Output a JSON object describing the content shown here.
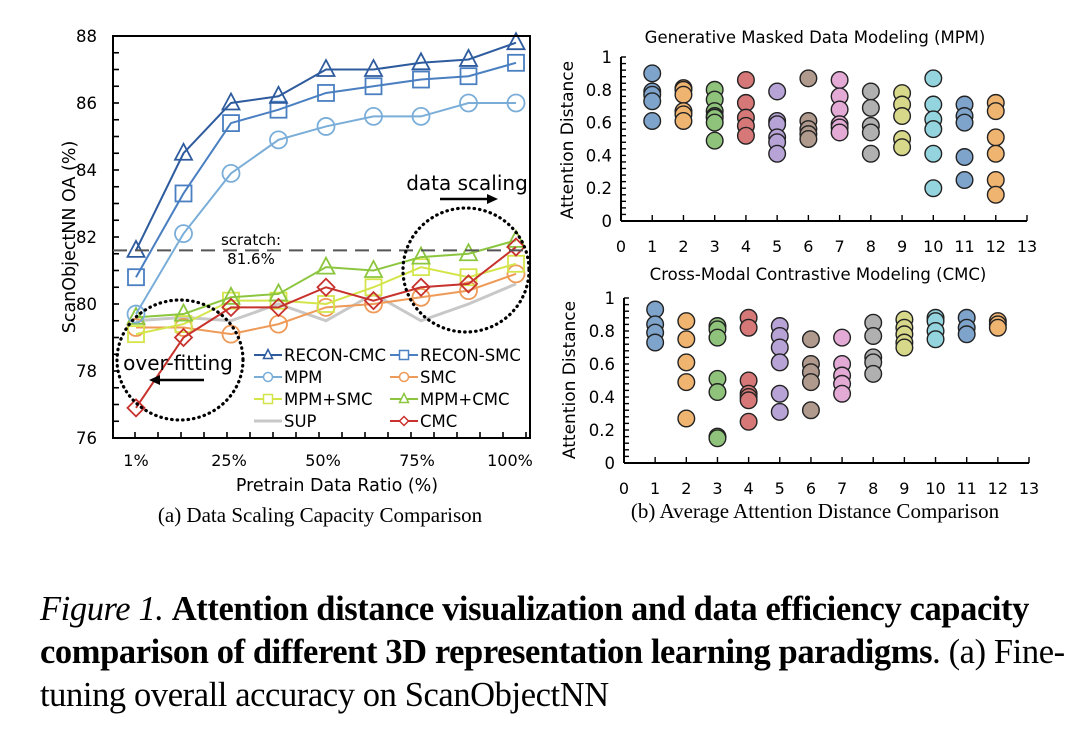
{
  "figure": {
    "subcaption_a": "(a) Data Scaling Capacity Comparison",
    "subcaption_b": "(b) Average Attention Distance Comparison"
  },
  "caption": {
    "label": "Figure 1.",
    "bold_text": "Attention distance visualization and data efficiency capacity comparison of different 3D representation learning paradigms",
    "rest_text": ". (a) Fine-tuning overall accuracy on ScanObjectNN"
  },
  "colors": {
    "RECON-CMC": "#2e5b9e",
    "RECON-SMC": "#4a7fc1",
    "MPM": "#7aaed9",
    "SMC": "#ee9a58",
    "MPM+SMC": "#d4e54a",
    "MPM+CMC": "#8cc63f",
    "SUP": "#c8c8c8",
    "CMC": "#c8322d",
    "scatter": [
      "#7ea4cc",
      "#f0b471",
      "#8fc27a",
      "#d67877",
      "#b7a3d6",
      "#b09a8e",
      "#e3aad6",
      "#b0b0b0",
      "#d8d88a",
      "#94d4de",
      "#7ea4cc",
      "#f0b471"
    ]
  },
  "chart_data": [
    {
      "type": "line",
      "id": "data-scaling",
      "title": "",
      "xlabel": "Pretrain Data Ratio (%)",
      "ylabel": "ScanObjectNN OA (%)",
      "x_tick_labels": [
        "1%",
        "25%",
        "50%",
        "75%",
        "100%"
      ],
      "x": [
        1,
        12.5,
        25,
        37.5,
        50,
        62.5,
        75,
        87.5,
        100
      ],
      "ylim": [
        76,
        88
      ],
      "y_ticks": [
        76,
        78,
        80,
        82,
        84,
        86,
        88
      ],
      "grid": false,
      "legend_placement": "bottom-right",
      "series": [
        {
          "name": "RECON-CMC",
          "marker": "triangle",
          "values": [
            81.6,
            84.5,
            86.0,
            86.2,
            87.0,
            87.0,
            87.2,
            87.3,
            87.8
          ]
        },
        {
          "name": "RECON-SMC",
          "marker": "square",
          "values": [
            80.8,
            83.3,
            85.4,
            85.8,
            86.3,
            86.5,
            86.7,
            86.8,
            87.2
          ]
        },
        {
          "name": "MPM",
          "marker": "circle",
          "values": [
            79.7,
            82.1,
            83.9,
            84.9,
            85.3,
            85.6,
            85.6,
            86.0,
            86.0
          ]
        },
        {
          "name": "SMC",
          "marker": "circle",
          "values": [
            79.3,
            79.3,
            79.1,
            79.4,
            79.9,
            80.0,
            80.2,
            80.4,
            80.9
          ]
        },
        {
          "name": "MPM+SMC",
          "marker": "square",
          "values": [
            79.1,
            79.4,
            80.1,
            80.1,
            80.0,
            80.5,
            81.1,
            80.8,
            81.2
          ]
        },
        {
          "name": "MPM+CMC",
          "marker": "triangle",
          "values": [
            79.6,
            79.7,
            80.2,
            80.3,
            81.1,
            81.0,
            81.4,
            81.5,
            81.9
          ]
        },
        {
          "name": "SUP",
          "marker": "none",
          "values": [
            79.5,
            79.6,
            79.5,
            80.0,
            79.5,
            80.3,
            79.5,
            80.0,
            80.6
          ]
        },
        {
          "name": "CMC",
          "marker": "diamond",
          "values": [
            76.9,
            79.0,
            79.9,
            79.9,
            80.5,
            80.1,
            80.5,
            80.6,
            81.7
          ]
        }
      ],
      "reference_line": {
        "value": 81.6,
        "label_line1": "scratch:",
        "label_line2": "81.6%"
      },
      "annotations": [
        {
          "text": "data scaling",
          "arrow": "right"
        },
        {
          "text": "over-fitting",
          "arrow": "left"
        }
      ]
    },
    {
      "type": "scatter",
      "id": "mpm-attention",
      "title": "Generative Masked Data Modeling (MPM)",
      "xlabel": "",
      "ylabel": "Attention Distance",
      "xlim": [
        0,
        13
      ],
      "ylim": [
        0,
        1
      ],
      "x_ticks": [
        0,
        1,
        2,
        3,
        4,
        5,
        6,
        7,
        8,
        9,
        10,
        11,
        12,
        13
      ],
      "y_ticks": [
        0,
        0.2,
        0.4,
        0.6,
        0.8,
        1
      ],
      "y_tick_labels": [
        "0",
        "0.2",
        "0.4",
        "0.6",
        "0.8",
        "1"
      ],
      "points_by_layer": [
        [
          0.9,
          0.79,
          0.77,
          0.73,
          0.61
        ],
        [
          0.81,
          0.8,
          0.77,
          0.67,
          0.65,
          0.61
        ],
        [
          0.8,
          0.74,
          0.67,
          0.64,
          0.63,
          0.6,
          0.49
        ],
        [
          0.86,
          0.72,
          0.63,
          0.58,
          0.52
        ],
        [
          0.79,
          0.61,
          0.59,
          0.51,
          0.48,
          0.41
        ],
        [
          0.87,
          0.61,
          0.56,
          0.53,
          0.5
        ],
        [
          0.86,
          0.76,
          0.68,
          0.59,
          0.57,
          0.54
        ],
        [
          0.79,
          0.69,
          0.58,
          0.54,
          0.41
        ],
        [
          0.78,
          0.71,
          0.64,
          0.5,
          0.45
        ],
        [
          0.87,
          0.71,
          0.62,
          0.56,
          0.41,
          0.2
        ],
        [
          0.71,
          0.64,
          0.6,
          0.39,
          0.25
        ],
        [
          0.72,
          0.67,
          0.51,
          0.41,
          0.25,
          0.16
        ]
      ]
    },
    {
      "type": "scatter",
      "id": "cmc-attention",
      "title": "Cross-Modal Contrastive Modeling (CMC)",
      "xlabel": "",
      "ylabel": "Attention Distance",
      "xlim": [
        0,
        13
      ],
      "ylim": [
        0,
        1
      ],
      "x_ticks": [
        0,
        1,
        2,
        3,
        4,
        5,
        6,
        7,
        8,
        9,
        10,
        11,
        12,
        13
      ],
      "y_ticks": [
        0,
        0.2,
        0.4,
        0.6,
        0.8,
        1
      ],
      "y_tick_labels": [
        "0",
        "0.2",
        "0.4",
        "0.6",
        "0.8",
        "1"
      ],
      "points_by_layer": [
        [
          0.93,
          0.84,
          0.79,
          0.73
        ],
        [
          0.86,
          0.75,
          0.61,
          0.49,
          0.27
        ],
        [
          0.83,
          0.81,
          0.76,
          0.51,
          0.43,
          0.16,
          0.15
        ],
        [
          0.88,
          0.82,
          0.5,
          0.42,
          0.4,
          0.38,
          0.25
        ],
        [
          0.83,
          0.77,
          0.7,
          0.61,
          0.42,
          0.31
        ],
        [
          0.75,
          0.6,
          0.55,
          0.49,
          0.32
        ],
        [
          0.76,
          0.6,
          0.53,
          0.48,
          0.42
        ],
        [
          0.85,
          0.77,
          0.64,
          0.61,
          0.54
        ],
        [
          0.87,
          0.82,
          0.78,
          0.73,
          0.7
        ],
        [
          0.88,
          0.86,
          0.8,
          0.75
        ],
        [
          0.88,
          0.82,
          0.78
        ],
        [
          0.86,
          0.84,
          0.82
        ]
      ]
    }
  ]
}
